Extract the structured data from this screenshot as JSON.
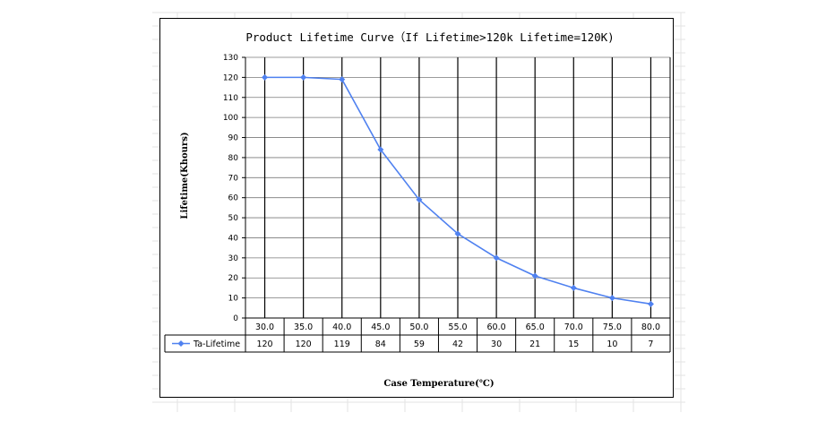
{
  "chart_data": {
    "type": "line",
    "title": "Product Lifetime Curve（If Lifetime>120k Lifetime=120K)",
    "xlabel": "Case Temperature(℃)",
    "ylabel": "Lifetime(Khours)",
    "ylim": [
      0,
      130
    ],
    "y_ticks": [
      "0",
      "10",
      "20",
      "30",
      "40",
      "50",
      "60",
      "70",
      "80",
      "90",
      "100",
      "110",
      "120",
      "130"
    ],
    "categories": [
      "30.0",
      "35.0",
      "40.0",
      "45.0",
      "50.0",
      "55.0",
      "60.0",
      "65.0",
      "70.0",
      "75.0",
      "80.0"
    ],
    "series": [
      {
        "name": "Ta-Lifetime",
        "values": [
          120,
          120,
          119,
          84,
          59,
          42,
          30,
          21,
          15,
          10,
          7
        ],
        "labels": [
          "120",
          "120",
          "119",
          "84",
          "59",
          "42",
          "30",
          "21",
          "15",
          "10",
          "7"
        ],
        "color": "#4f81f0"
      }
    ],
    "grid": true,
    "legend": "data-table"
  }
}
